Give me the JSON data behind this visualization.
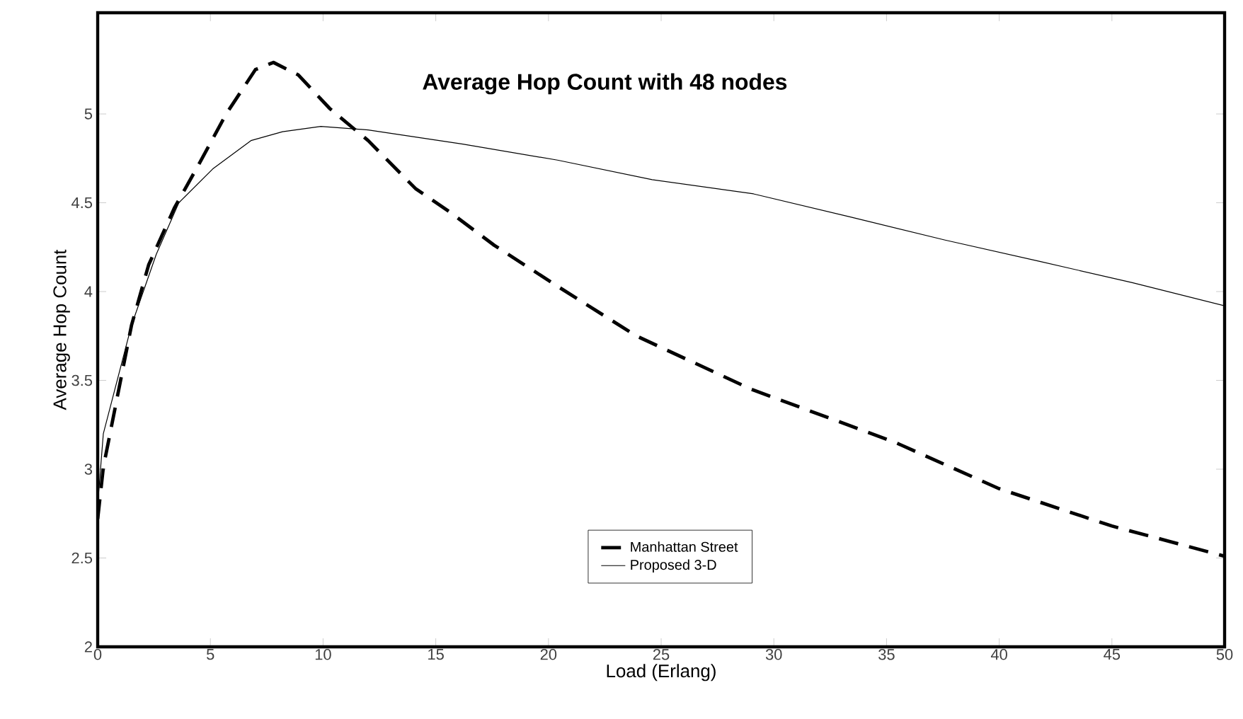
{
  "chart_data": {
    "type": "line",
    "title": "Average Hop Count with 48 nodes",
    "xlabel": "Load (Erlang)",
    "ylabel": "Average Hop Count",
    "xlim": [
      0,
      50
    ],
    "ylim": [
      2,
      5.57
    ],
    "xticks": [
      0,
      5,
      10,
      15,
      20,
      25,
      30,
      35,
      40,
      45,
      50
    ],
    "yticks": [
      2,
      2.5,
      3,
      3.5,
      4,
      4.5,
      5
    ],
    "grid": false,
    "legend": "bottom",
    "marker": "none",
    "series": [
      {
        "name": "Manhattan Street",
        "color": "#000000",
        "line_style": "dashed",
        "x": [
          0,
          0.25,
          1.5,
          2.26,
          3.4,
          4.46,
          5.7,
          7.0,
          7.8,
          8.9,
          10.3,
          12.0,
          14.1,
          15.6,
          17.6,
          20.4,
          23.9,
          29.0,
          35.4,
          40,
          45,
          50
        ],
        "values": [
          2.72,
          3.01,
          3.81,
          4.15,
          4.47,
          4.71,
          5.0,
          5.25,
          5.29,
          5.22,
          5.03,
          4.85,
          4.58,
          4.45,
          4.26,
          4.03,
          3.75,
          3.45,
          3.15,
          2.89,
          2.68,
          2.51
        ]
      },
      {
        "name": "Proposed 3-D",
        "color": "#000000",
        "line_style": "solid",
        "x": [
          0,
          0.25,
          1.5,
          2.6,
          3.6,
          5.1,
          6.8,
          8.2,
          9.9,
          12.0,
          16.2,
          20.4,
          24.6,
          29.1,
          33.4,
          37.6,
          41.8,
          45.9,
          50
        ],
        "values": [
          2.8,
          3.2,
          3.81,
          4.21,
          4.5,
          4.69,
          4.85,
          4.9,
          4.93,
          4.91,
          4.83,
          4.74,
          4.63,
          4.55,
          4.42,
          4.29,
          4.17,
          4.05,
          3.92
        ]
      }
    ]
  }
}
